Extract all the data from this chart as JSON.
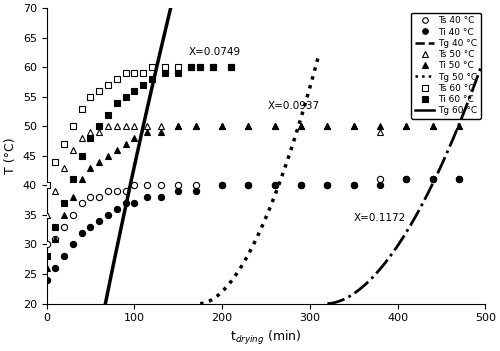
{
  "title": "",
  "xlabel": "t$_{drying}$ (min)",
  "ylabel": "T (°C)",
  "xlim": [
    0,
    500
  ],
  "ylim": [
    20,
    70
  ],
  "yticks": [
    20,
    25,
    30,
    35,
    40,
    45,
    50,
    55,
    60,
    65,
    70
  ],
  "xticks": [
    0,
    100,
    200,
    300,
    400,
    500
  ],
  "Ts40_x": [
    0,
    10,
    20,
    30,
    40,
    50,
    60,
    70,
    80,
    90,
    100,
    115,
    130,
    150,
    170,
    200,
    230,
    260,
    290,
    320,
    350,
    380,
    410,
    440,
    470
  ],
  "Ts40_y": [
    30,
    31,
    33,
    35,
    37,
    38,
    38,
    39,
    39,
    39,
    40,
    40,
    40,
    40,
    40,
    40,
    40,
    40,
    40,
    40,
    40,
    41,
    41,
    41,
    41
  ],
  "Ti40_x": [
    0,
    10,
    20,
    30,
    40,
    50,
    60,
    70,
    80,
    90,
    100,
    115,
    130,
    150,
    170,
    200,
    230,
    260,
    290,
    320,
    350,
    380,
    410,
    440,
    470
  ],
  "Ti40_y": [
    24,
    26,
    28,
    30,
    32,
    33,
    34,
    35,
    36,
    37,
    37,
    38,
    38,
    39,
    39,
    40,
    40,
    40,
    40,
    40,
    40,
    40,
    41,
    41,
    41
  ],
  "Ts50_x": [
    0,
    10,
    20,
    30,
    40,
    50,
    60,
    70,
    80,
    90,
    100,
    115,
    130,
    150,
    170,
    200,
    230,
    260,
    290,
    320,
    350,
    380,
    410,
    440,
    470
  ],
  "Ts50_y": [
    35,
    39,
    43,
    46,
    48,
    49,
    49,
    50,
    50,
    50,
    50,
    50,
    50,
    50,
    50,
    50,
    50,
    50,
    50,
    50,
    50,
    49,
    50,
    50,
    50
  ],
  "Ti50_x": [
    0,
    10,
    20,
    30,
    40,
    50,
    60,
    70,
    80,
    90,
    100,
    115,
    130,
    150,
    170,
    200,
    230,
    260,
    290,
    320,
    350,
    380,
    410,
    440,
    470
  ],
  "Ti50_y": [
    26,
    31,
    35,
    38,
    41,
    43,
    44,
    45,
    46,
    47,
    48,
    49,
    49,
    50,
    50,
    50,
    50,
    50,
    50,
    50,
    50,
    50,
    50,
    50,
    50
  ],
  "Ts60_x": [
    0,
    10,
    20,
    30,
    40,
    50,
    60,
    70,
    80,
    90,
    100,
    110,
    120,
    135,
    150,
    165,
    175,
    190,
    210
  ],
  "Ts60_y": [
    40,
    44,
    47,
    50,
    53,
    55,
    56,
    57,
    58,
    59,
    59,
    59,
    60,
    60,
    60,
    60,
    60,
    60,
    60
  ],
  "Ti60_x": [
    0,
    10,
    20,
    30,
    40,
    50,
    60,
    70,
    80,
    90,
    100,
    110,
    120,
    135,
    150,
    165,
    175,
    190,
    210
  ],
  "Ti60_y": [
    28,
    33,
    37,
    41,
    45,
    48,
    50,
    52,
    54,
    55,
    56,
    57,
    58,
    59,
    59,
    60,
    60,
    60,
    60
  ],
  "Tg40_solid_x": [
    65,
    80,
    95,
    110,
    125,
    140,
    152
  ],
  "Tg40_solid_y": [
    20,
    28,
    38,
    50,
    62,
    70,
    75
  ],
  "Tg50_dot_x_start": 175,
  "Tg50_dot_x_end": 310,
  "Tg50_dot_y_start": 20,
  "Tg50_dot_y_end": 62,
  "Tg50_exponent": 1.8,
  "Tg60_dashdot_x_start": 320,
  "Tg60_dashdot_x_end": 495,
  "Tg60_dashdot_y_start": 20,
  "Tg60_dashdot_y_end": 60,
  "Tg60_exponent": 1.8,
  "ann40_x": 162,
  "ann40_y": 62,
  "ann40_text": "X=0.0749",
  "ann50_x": 252,
  "ann50_y": 53,
  "ann50_text": "X=0.0937",
  "ann60_x": 350,
  "ann60_y": 34,
  "ann60_text": "X=0.1172",
  "figsize": [
    5.0,
    3.51
  ],
  "dpi": 100
}
